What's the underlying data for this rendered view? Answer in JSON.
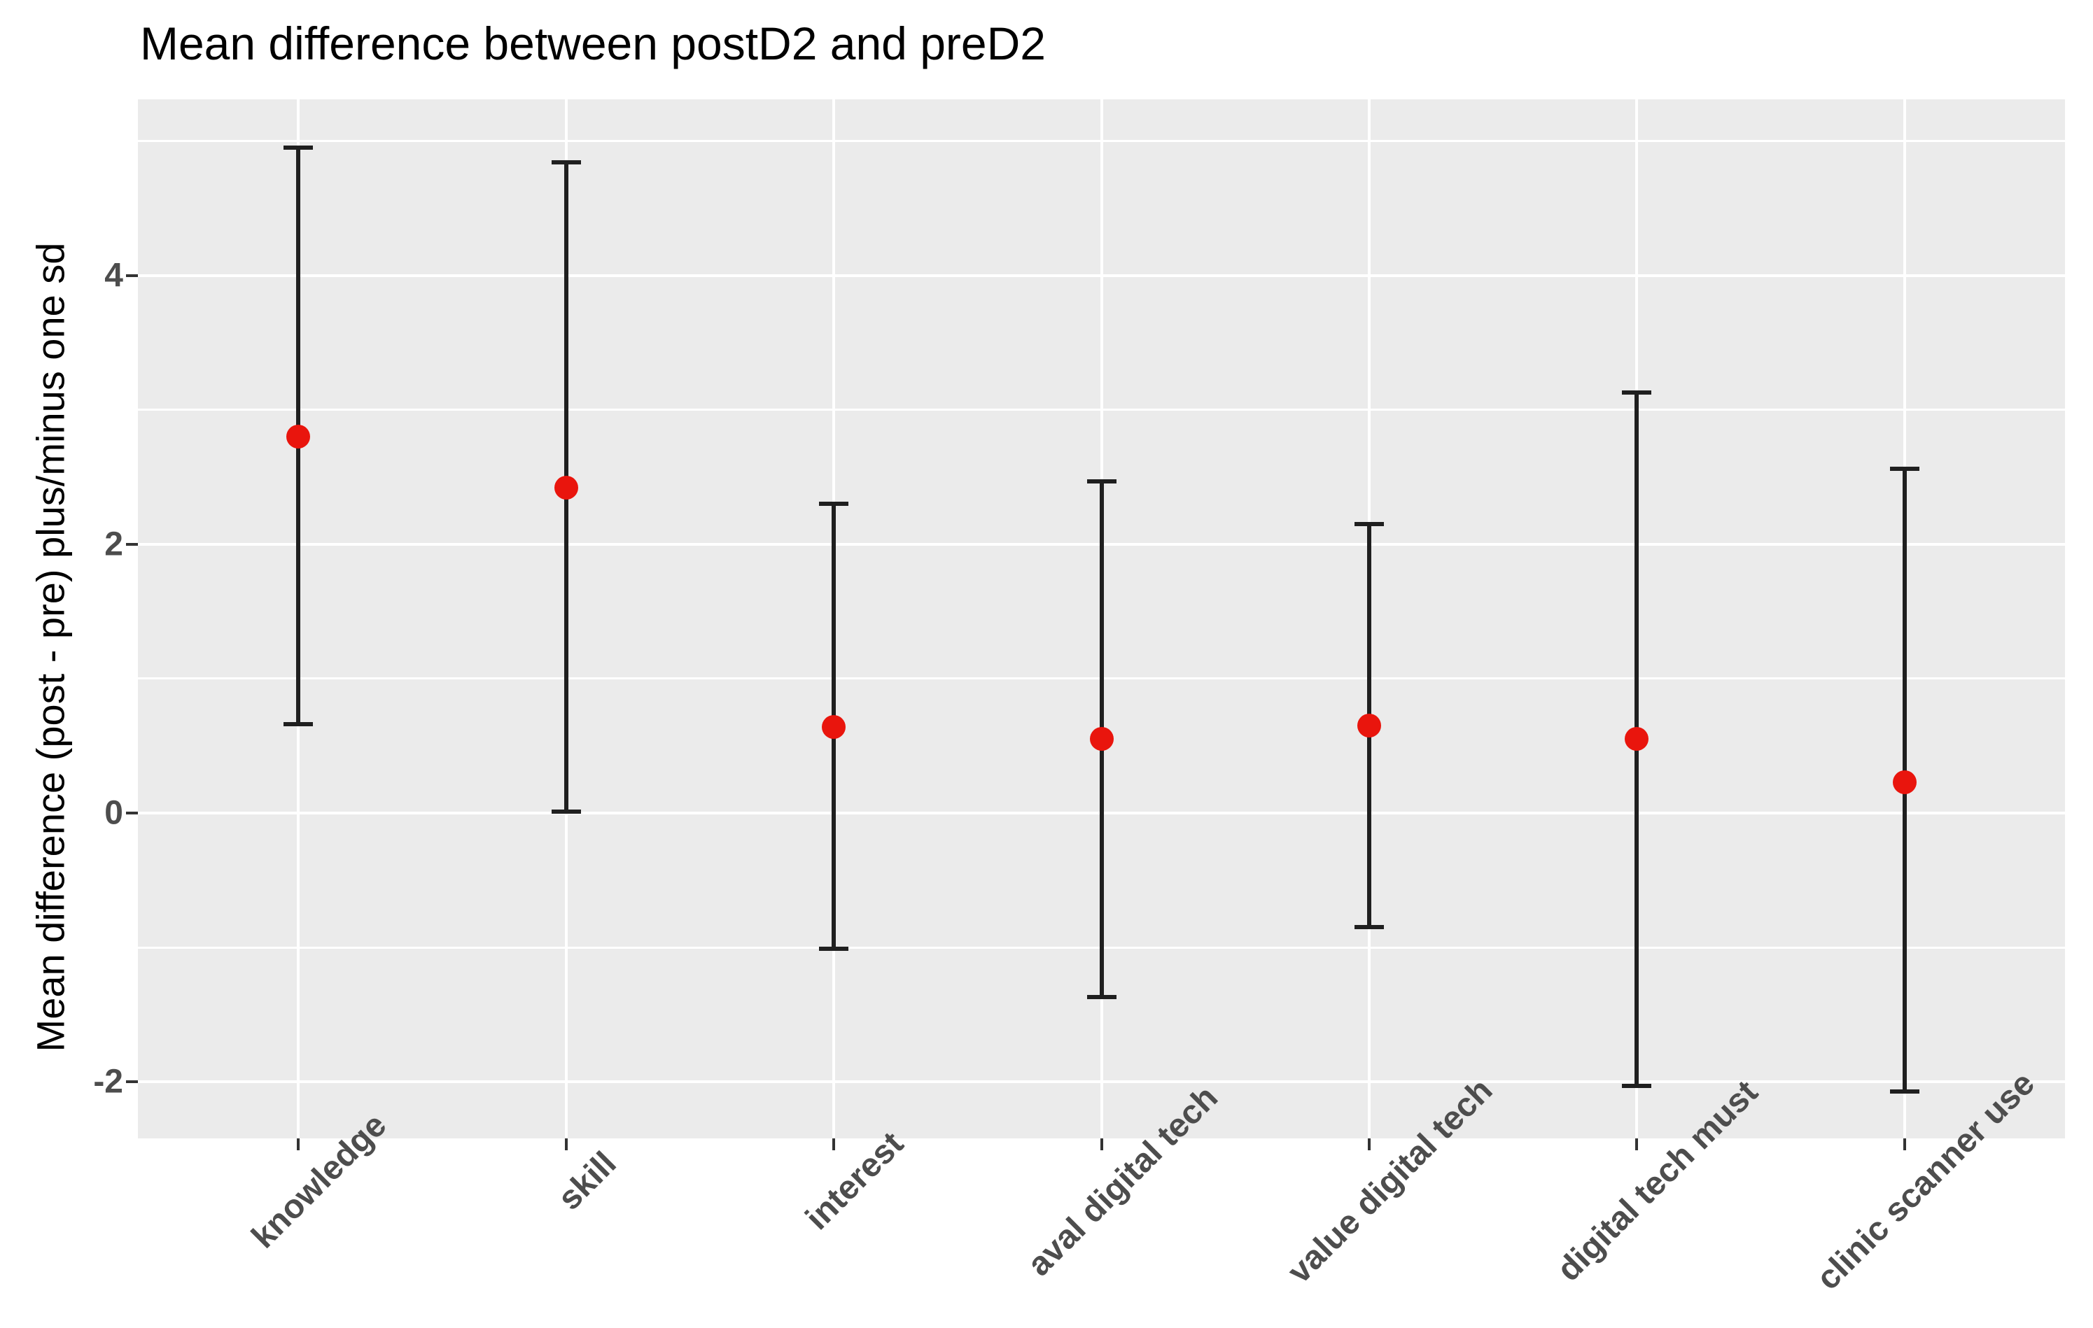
{
  "title": "Mean difference between postD2 and preD2",
  "chart_data": {
    "type": "scatter",
    "subtype": "point-with-errorbar",
    "title": "Mean difference between postD2 and preD2",
    "xlabel": "",
    "ylabel": "Mean difference (post - pre) plus/minus one sd",
    "categories": [
      "knowledge",
      "skill",
      "interest",
      "aval digital tech",
      "value digital tech",
      "digital tech must",
      "clinic scanner use"
    ],
    "points": [
      {
        "category": "knowledge",
        "mean": 2.8,
        "upper": 4.95,
        "lower": 0.66
      },
      {
        "category": "skill",
        "mean": 2.42,
        "upper": 4.84,
        "lower": 0.01
      },
      {
        "category": "interest",
        "mean": 0.64,
        "upper": 2.3,
        "lower": -1.01
      },
      {
        "category": "aval digital tech",
        "mean": 0.55,
        "upper": 2.47,
        "lower": -1.37
      },
      {
        "category": "value digital tech",
        "mean": 0.65,
        "upper": 2.15,
        "lower": -0.85
      },
      {
        "category": "digital tech must",
        "mean": 0.55,
        "upper": 3.13,
        "lower": -2.03
      },
      {
        "category": "clinic scanner use",
        "mean": 0.23,
        "upper": 2.56,
        "lower": -2.07
      }
    ],
    "ylim": [
      -2.42,
      5.31
    ],
    "yticks_major": [
      -2,
      0,
      2,
      4
    ],
    "ytick_labels": [
      "-2",
      "0",
      "2",
      "4"
    ],
    "yticks_minor": [
      -1,
      1,
      3,
      5
    ],
    "grid": "white major and minor horizontal lines, white vertical line per category, on grey panel",
    "legend": "none",
    "colors": {
      "point": "#e9150d",
      "errorbar": "#1f1f1f",
      "panel_bg": "#ebebeb",
      "gridline": "#ffffff",
      "axis_text": "#4d4d4d",
      "title_text": "#000000"
    }
  }
}
